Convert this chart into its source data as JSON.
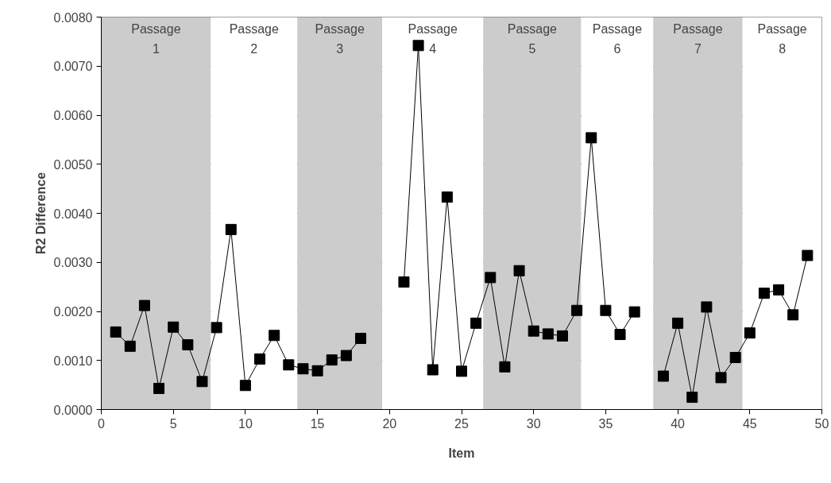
{
  "chart_data": {
    "type": "line",
    "xlabel": "Item",
    "ylabel": "R2 Difference",
    "x": [
      1,
      2,
      3,
      4,
      5,
      6,
      7,
      8,
      9,
      10,
      11,
      12,
      13,
      14,
      15,
      16,
      17,
      18,
      19,
      20,
      21,
      22,
      23,
      24,
      25,
      26,
      27,
      28,
      29,
      30,
      31,
      32,
      33,
      34,
      35,
      36,
      37,
      38,
      39,
      40,
      41,
      42,
      43,
      44,
      45,
      46,
      47,
      48,
      49
    ],
    "series": [
      {
        "color": "#000000",
        "values": [
          0.00158,
          0.00129,
          0.00212,
          0.00043,
          0.00168,
          0.00132,
          0.00057,
          0.00167,
          0.00367,
          0.00049,
          0.00103,
          0.00151,
          0.00091,
          0.00083,
          0.00079,
          0.00101,
          0.0011,
          0.00145,
          null,
          null,
          0.0026,
          0.00742,
          0.00081,
          0.00433,
          0.00078,
          0.00176,
          0.00269,
          0.00087,
          0.00283,
          0.0016,
          0.00154,
          0.0015,
          0.00202,
          0.00554,
          0.00202,
          0.00153,
          0.00199,
          null,
          0.00068,
          0.00176,
          0.00025,
          0.00209,
          0.00065,
          0.00106,
          0.00156,
          0.00237,
          0.00244,
          0.00193,
          0.00314
        ]
      }
    ],
    "xlim": [
      0,
      50
    ],
    "xticks": [
      0,
      5,
      10,
      15,
      20,
      25,
      30,
      35,
      40,
      45,
      50
    ],
    "ylim": [
      0,
      0.008
    ],
    "yticks": [
      {
        "value": 0,
        "label": "0.0000"
      },
      {
        "value": 0.001,
        "label": "0.0010"
      },
      {
        "value": 0.002,
        "label": "0.0020"
      },
      {
        "value": 0.003,
        "label": "0.0030"
      },
      {
        "value": 0.004,
        "label": "0.0040"
      },
      {
        "value": 0.005,
        "label": "0.0050"
      },
      {
        "value": 0.006,
        "label": "0.0060"
      },
      {
        "value": 0.007,
        "label": "0.0070"
      },
      {
        "value": 0.008,
        "label": "0.0080"
      }
    ],
    "grid": "y",
    "marker": "square",
    "line_style": "solid",
    "bands": [
      {
        "axis": "x",
        "from": 0,
        "to": 7.6,
        "label": "Passage\n1",
        "color": "#cccccc"
      },
      {
        "axis": "x",
        "from": 7.6,
        "to": 13.6,
        "label": "Passage\n2",
        "color": "#ffffff"
      },
      {
        "axis": "x",
        "from": 13.6,
        "to": 19.5,
        "label": "Passage\n3",
        "color": "#cccccc"
      },
      {
        "axis": "x",
        "from": 19.5,
        "to": 26.5,
        "label": "Passage\n4",
        "color": "#ffffff"
      },
      {
        "axis": "x",
        "from": 26.5,
        "to": 33.3,
        "label": "Passage\n5",
        "color": "#cccccc"
      },
      {
        "axis": "x",
        "from": 33.3,
        "to": 38.3,
        "label": "Passage\n6",
        "color": "#ffffff"
      },
      {
        "axis": "x",
        "from": 38.3,
        "to": 44.5,
        "label": "Passage\n7",
        "color": "#cccccc"
      },
      {
        "axis": "x",
        "from": 44.5,
        "to": 50,
        "label": "Passage\n8",
        "color": "#ffffff"
      }
    ]
  }
}
